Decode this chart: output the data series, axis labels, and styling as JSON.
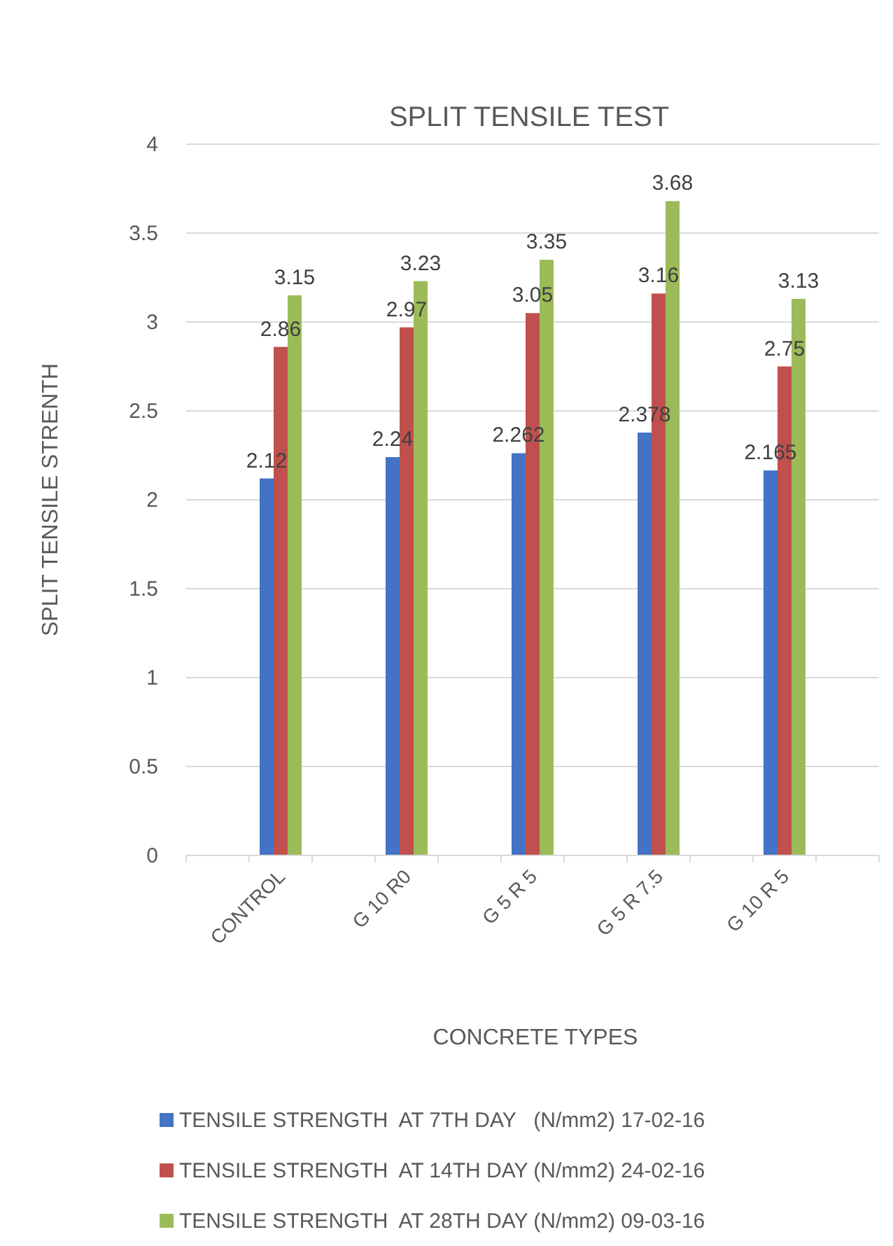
{
  "chart_data": {
    "type": "bar",
    "title": "SPLIT TENSILE TEST",
    "xlabel": "CONCRETE TYPES",
    "ylabel": "SPLIT TENSILE STRENTH",
    "categories": [
      null,
      "CONTROL",
      null,
      "G 10 R0",
      null,
      "G 5 R 5",
      null,
      "G 5 R 7.5",
      null,
      "G 10 R 5",
      null
    ],
    "series": [
      {
        "name": "TENSILE STRENGTH  AT 7TH DAY   (N/mm2) 17-02-16",
        "color": "#4472c4",
        "values": [
          null,
          2.12,
          null,
          2.24,
          null,
          2.262,
          null,
          2.378,
          null,
          2.165,
          null
        ]
      },
      {
        "name": "TENSILE STRENGTH  AT 14TH DAY (N/mm2) 24-02-16",
        "color": "#c0504d",
        "values": [
          null,
          2.86,
          null,
          2.97,
          null,
          3.05,
          null,
          3.16,
          null,
          2.75,
          null
        ]
      },
      {
        "name": "TENSILE STRENGTH  AT 28TH DAY (N/mm2) 09-03-16",
        "color": "#9bbb59",
        "values": [
          null,
          3.15,
          null,
          3.23,
          null,
          3.35,
          null,
          3.68,
          null,
          3.13,
          null
        ]
      }
    ],
    "ylim": [
      0,
      4
    ],
    "yticks": [
      0,
      0.5,
      1,
      1.5,
      2,
      2.5,
      3,
      3.5,
      4
    ],
    "grid": "y",
    "legend": "bottom",
    "data_labels": true
  }
}
